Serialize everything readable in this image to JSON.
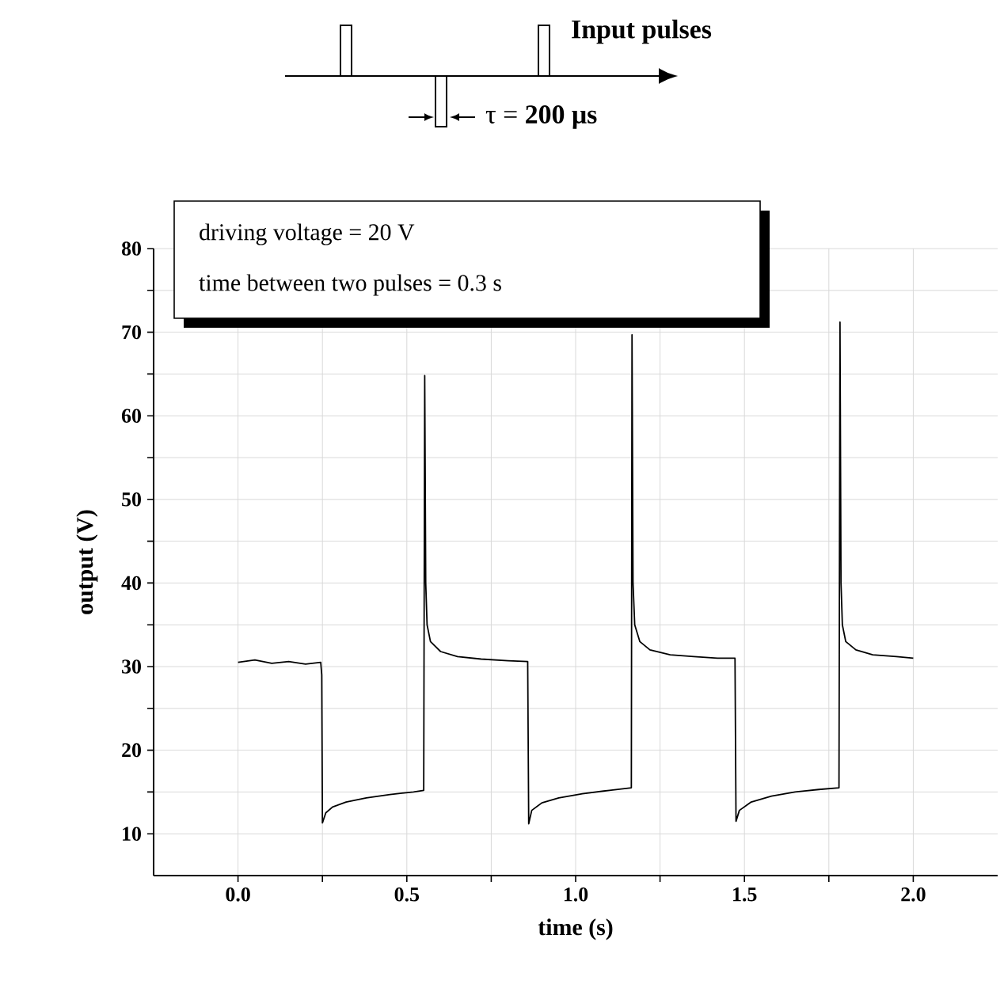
{
  "chart_data": {
    "type": "line",
    "xlabel": "time (s)",
    "ylabel": "output (V)",
    "annotations": [
      "driving voltage = 20 V",
      "time between two pulses = 0.3 s",
      "Input pulses",
      "τ = **200 μs**"
    ],
    "x": [
      0,
      0.05,
      0.1,
      0.15,
      0.2,
      0.245,
      0.248,
      0.25,
      0.26,
      0.28,
      0.32,
      0.38,
      0.45,
      0.52,
      0.55,
      0.553,
      0.556,
      0.56,
      0.57,
      0.6,
      0.65,
      0.72,
      0.8,
      0.858,
      0.861,
      0.87,
      0.9,
      0.95,
      1.02,
      1.1,
      1.165,
      1.167,
      1.17,
      1.175,
      1.19,
      1.22,
      1.28,
      1.35,
      1.42,
      1.472,
      1.475,
      1.485,
      1.52,
      1.58,
      1.65,
      1.72,
      1.78,
      1.783,
      1.786,
      1.79,
      1.8,
      1.83,
      1.88,
      1.95,
      2.0
    ],
    "values": [
      30.5,
      30.8,
      30.4,
      30.6,
      30.3,
      30.5,
      29,
      11.3,
      12.5,
      13.2,
      13.8,
      14.3,
      14.7,
      15.0,
      15.2,
      64.8,
      40,
      35,
      33,
      31.8,
      31.2,
      30.9,
      30.7,
      30.6,
      11.2,
      12.8,
      13.7,
      14.3,
      14.8,
      15.2,
      15.5,
      69.7,
      40,
      35,
      33,
      32,
      31.4,
      31.2,
      31.0,
      31.0,
      11.5,
      12.8,
      13.8,
      14.5,
      15.0,
      15.3,
      15.5,
      71.2,
      40,
      35,
      33,
      32,
      31.4,
      31.2,
      31.0
    ],
    "color": "#000000",
    "xlim": [
      -0.25,
      2.25
    ],
    "ylim": [
      5,
      80
    ],
    "xticks": [
      {
        "value": 0,
        "label": "0.0"
      },
      {
        "value": 0.25,
        "label": null
      },
      {
        "value": 0.5,
        "label": "0.5"
      },
      {
        "value": 0.75,
        "label": null
      },
      {
        "value": 1,
        "label": "1.0"
      },
      {
        "value": 1.25,
        "label": null
      },
      {
        "value": 1.5,
        "label": "1.5"
      },
      {
        "value": 1.75,
        "label": null
      },
      {
        "value": 2,
        "label": "2.0"
      }
    ],
    "yticks": [
      10,
      {
        "value": 15,
        "label": null
      },
      20,
      {
        "value": 25,
        "label": null
      },
      30,
      {
        "value": 35,
        "label": null
      },
      40,
      {
        "value": 45,
        "label": null
      },
      50,
      {
        "value": 55,
        "label": null
      },
      60,
      {
        "value": 65,
        "label": null
      },
      70,
      {
        "value": 75,
        "label": null
      },
      80
    ],
    "grid": true
  }
}
